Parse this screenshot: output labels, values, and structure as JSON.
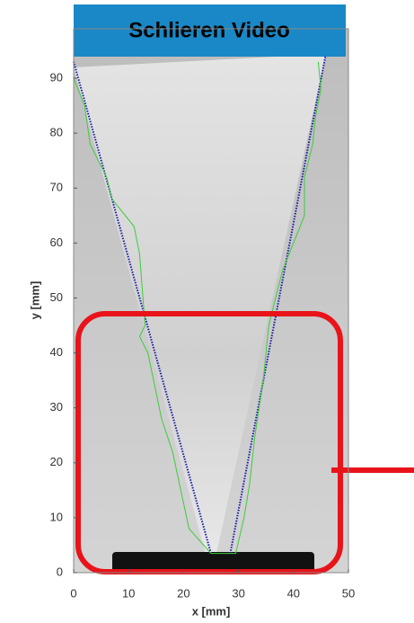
{
  "chart_data": {
    "type": "image",
    "title": "Schlieren Video",
    "xlabel": "x [mm]",
    "ylabel": "y [mm]",
    "xlim": [
      0,
      50
    ],
    "ylim": [
      0,
      99
    ],
    "xticks": [
      0,
      10,
      20,
      30,
      40,
      50
    ],
    "yticks": [
      0,
      10,
      20,
      30,
      40,
      50,
      60,
      70,
      80,
      90
    ],
    "series": [
      {
        "color": "#1a1aa8",
        "x": [
          25,
          0
        ],
        "values": [
          3.5,
          93
        ]
      },
      {
        "color": "#1a1aa8",
        "x": [
          28.5,
          46
        ],
        "values": [
          3.5,
          95
        ]
      },
      {
        "color": "#3ccc3c",
        "x": [
          0,
          2,
          3,
          6,
          7,
          11,
          12,
          13,
          12,
          13.5,
          16,
          18,
          19.5,
          21,
          25,
          29.5,
          31,
          32,
          33,
          34.5,
          35.5,
          38,
          40,
          42,
          42,
          43.5,
          44,
          45,
          44.5
        ],
        "values": [
          90,
          85,
          78,
          72,
          68,
          63,
          58,
          45,
          43,
          40,
          28,
          22,
          15,
          8,
          3.5,
          3.5,
          10,
          16,
          25,
          35,
          45,
          55,
          60,
          65,
          72,
          78,
          83,
          88,
          93
        ]
      }
    ]
  }
}
